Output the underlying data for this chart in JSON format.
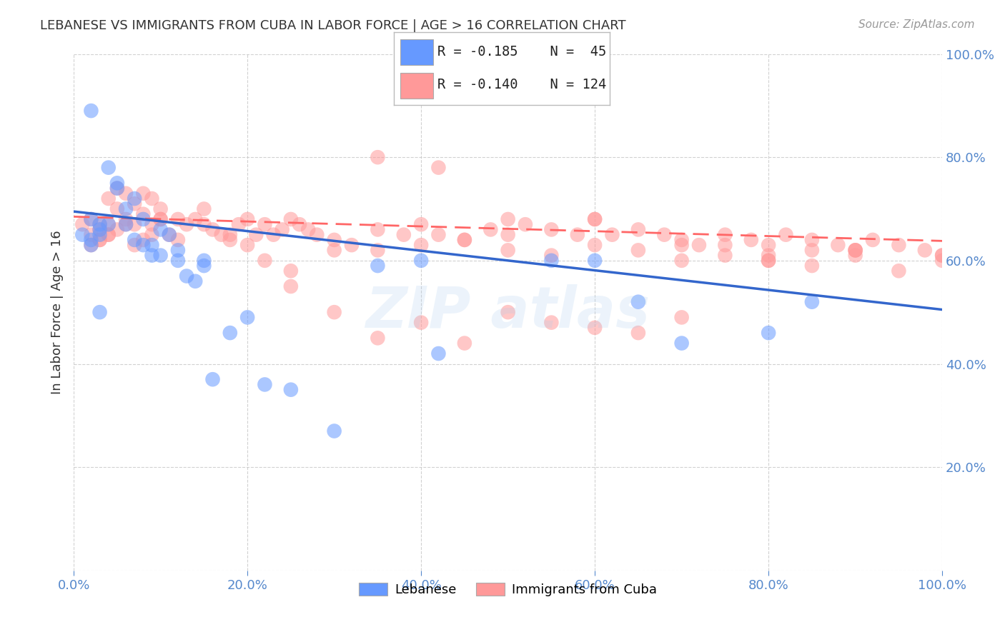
{
  "title": "LEBANESE VS IMMIGRANTS FROM CUBA IN LABOR FORCE | AGE > 16 CORRELATION CHART",
  "source": "Source: ZipAtlas.com",
  "ylabel": "In Labor Force | Age > 16",
  "x_ticks": [
    0.0,
    0.2,
    0.4,
    0.6,
    0.8,
    1.0
  ],
  "y_ticks": [
    0.0,
    0.2,
    0.4,
    0.6,
    0.8,
    1.0
  ],
  "xlim": [
    0.0,
    1.0
  ],
  "ylim": [
    0.0,
    1.0
  ],
  "legend1_label": "Lebanese",
  "legend2_label": "Immigrants from Cuba",
  "r1": "-0.185",
  "n1": "45",
  "r2": "-0.140",
  "n2": "124",
  "blue_color": "#6699ff",
  "pink_color": "#ff9999",
  "blue_line_color": "#3366cc",
  "pink_line_color": "#ff6666",
  "title_color": "#333333",
  "grid_color": "#cccccc",
  "tick_color": "#5588cc",
  "background_color": "#ffffff",
  "blue_scatter_x": [
    0.02,
    0.03,
    0.01,
    0.02,
    0.03,
    0.04,
    0.02,
    0.03,
    0.05,
    0.06,
    0.07,
    0.08,
    0.09,
    0.1,
    0.11,
    0.12,
    0.13,
    0.14,
    0.15,
    0.03,
    0.04,
    0.05,
    0.06,
    0.07,
    0.08,
    0.09,
    0.1,
    0.12,
    0.15,
    0.18,
    0.2,
    0.22,
    0.25,
    0.35,
    0.4,
    0.42,
    0.55,
    0.6,
    0.65,
    0.7,
    0.8,
    0.85,
    0.02,
    0.16,
    0.3
  ],
  "blue_scatter_y": [
    0.68,
    0.67,
    0.65,
    0.64,
    0.66,
    0.67,
    0.63,
    0.65,
    0.74,
    0.7,
    0.72,
    0.68,
    0.63,
    0.61,
    0.65,
    0.62,
    0.57,
    0.56,
    0.6,
    0.5,
    0.78,
    0.75,
    0.67,
    0.64,
    0.63,
    0.61,
    0.66,
    0.6,
    0.59,
    0.46,
    0.49,
    0.36,
    0.35,
    0.59,
    0.6,
    0.42,
    0.6,
    0.6,
    0.52,
    0.44,
    0.46,
    0.52,
    0.89,
    0.37,
    0.27
  ],
  "pink_scatter_x": [
    0.01,
    0.02,
    0.03,
    0.02,
    0.03,
    0.04,
    0.03,
    0.04,
    0.05,
    0.06,
    0.07,
    0.08,
    0.09,
    0.1,
    0.02,
    0.03,
    0.04,
    0.05,
    0.06,
    0.07,
    0.08,
    0.09,
    0.1,
    0.11,
    0.12,
    0.13,
    0.14,
    0.15,
    0.16,
    0.17,
    0.18,
    0.19,
    0.2,
    0.21,
    0.22,
    0.23,
    0.24,
    0.25,
    0.26,
    0.27,
    0.28,
    0.3,
    0.32,
    0.35,
    0.38,
    0.4,
    0.42,
    0.45,
    0.48,
    0.5,
    0.52,
    0.55,
    0.58,
    0.6,
    0.62,
    0.65,
    0.68,
    0.7,
    0.72,
    0.75,
    0.78,
    0.8,
    0.82,
    0.85,
    0.88,
    0.9,
    0.92,
    0.95,
    0.98,
    1.0,
    0.04,
    0.05,
    0.06,
    0.07,
    0.08,
    0.09,
    0.1,
    0.12,
    0.15,
    0.18,
    0.2,
    0.22,
    0.25,
    0.3,
    0.35,
    0.4,
    0.45,
    0.5,
    0.55,
    0.6,
    0.65,
    0.7,
    0.75,
    0.8,
    0.85,
    0.9,
    0.35,
    0.42,
    0.5,
    0.6,
    0.7,
    0.8,
    0.9,
    1.0,
    0.25,
    0.3,
    0.35,
    0.4,
    0.45,
    0.5,
    0.55,
    0.6,
    0.65,
    0.7,
    0.75,
    0.8,
    0.85,
    0.9,
    0.95,
    1.0
  ],
  "pink_scatter_y": [
    0.67,
    0.68,
    0.67,
    0.65,
    0.66,
    0.67,
    0.64,
    0.65,
    0.74,
    0.73,
    0.71,
    0.69,
    0.67,
    0.68,
    0.63,
    0.64,
    0.65,
    0.66,
    0.67,
    0.63,
    0.64,
    0.65,
    0.68,
    0.65,
    0.64,
    0.67,
    0.68,
    0.67,
    0.66,
    0.65,
    0.64,
    0.67,
    0.68,
    0.65,
    0.67,
    0.65,
    0.66,
    0.68,
    0.67,
    0.66,
    0.65,
    0.64,
    0.63,
    0.66,
    0.65,
    0.67,
    0.65,
    0.64,
    0.66,
    0.65,
    0.67,
    0.66,
    0.65,
    0.68,
    0.65,
    0.66,
    0.65,
    0.64,
    0.63,
    0.65,
    0.64,
    0.63,
    0.65,
    0.64,
    0.63,
    0.62,
    0.64,
    0.63,
    0.62,
    0.61,
    0.72,
    0.7,
    0.68,
    0.67,
    0.73,
    0.72,
    0.7,
    0.68,
    0.7,
    0.65,
    0.63,
    0.6,
    0.58,
    0.62,
    0.62,
    0.63,
    0.64,
    0.62,
    0.61,
    0.63,
    0.62,
    0.6,
    0.63,
    0.6,
    0.62,
    0.61,
    0.8,
    0.78,
    0.68,
    0.68,
    0.63,
    0.61,
    0.62,
    0.6,
    0.55,
    0.5,
    0.45,
    0.48,
    0.44,
    0.5,
    0.48,
    0.47,
    0.46,
    0.49,
    0.61,
    0.6,
    0.59,
    0.62,
    0.58,
    0.61
  ],
  "blue_line_x": [
    0.0,
    1.0
  ],
  "blue_line_y_start": 0.695,
  "blue_line_y_end": 0.505,
  "pink_line_x": [
    0.0,
    1.0
  ],
  "pink_line_y_start": 0.685,
  "pink_line_y_end": 0.638
}
